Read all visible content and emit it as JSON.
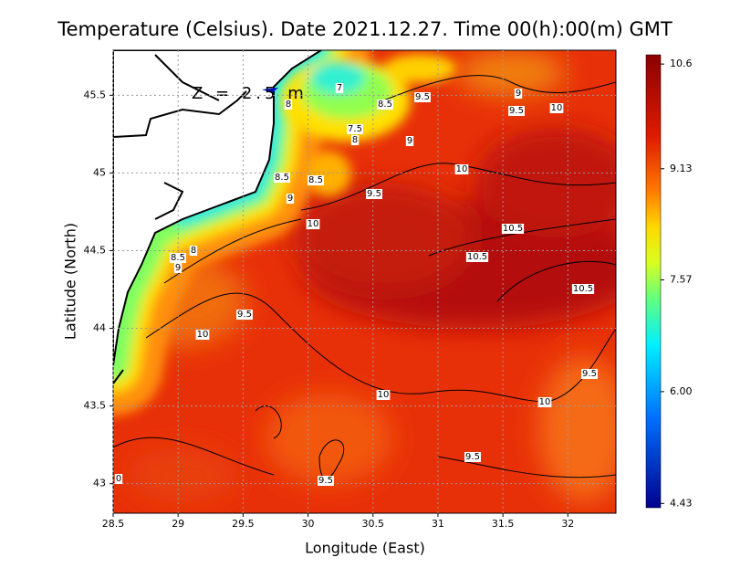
{
  "title": "Temperature (Celsius). Date 2021.12.27. Time 00(h):00(m)  GMT",
  "depth_label": "Z = 2.5 m",
  "x_label": "Longitude (East)",
  "y_label": "Latitude (North)",
  "xlim": [
    28.5,
    32.37
  ],
  "ylim": [
    42.81,
    45.79
  ],
  "xticks": [
    28.5,
    29,
    29.5,
    30,
    30.5,
    31,
    31.5,
    32
  ],
  "yticks": [
    43,
    43.5,
    44,
    44.5,
    45,
    45.5
  ],
  "grid": true,
  "colorbar": {
    "clim": [
      4.37,
      10.73
    ],
    "ticks": [
      4.43,
      {
        "value": 6,
        "label": "6.00"
      },
      7.57,
      9.13,
      10.6
    ]
  },
  "contour_labels": [
    7,
    8.5,
    9.5,
    9,
    9.5,
    10,
    8,
    7.5,
    8,
    9,
    10,
    8.5,
    8.5,
    9.5,
    9,
    10,
    10.5,
    10.5,
    8,
    8.5,
    9,
    10.5,
    9.5,
    10,
    9.5,
    10,
    10,
    9.5,
    9.5,
    0
  ]
}
